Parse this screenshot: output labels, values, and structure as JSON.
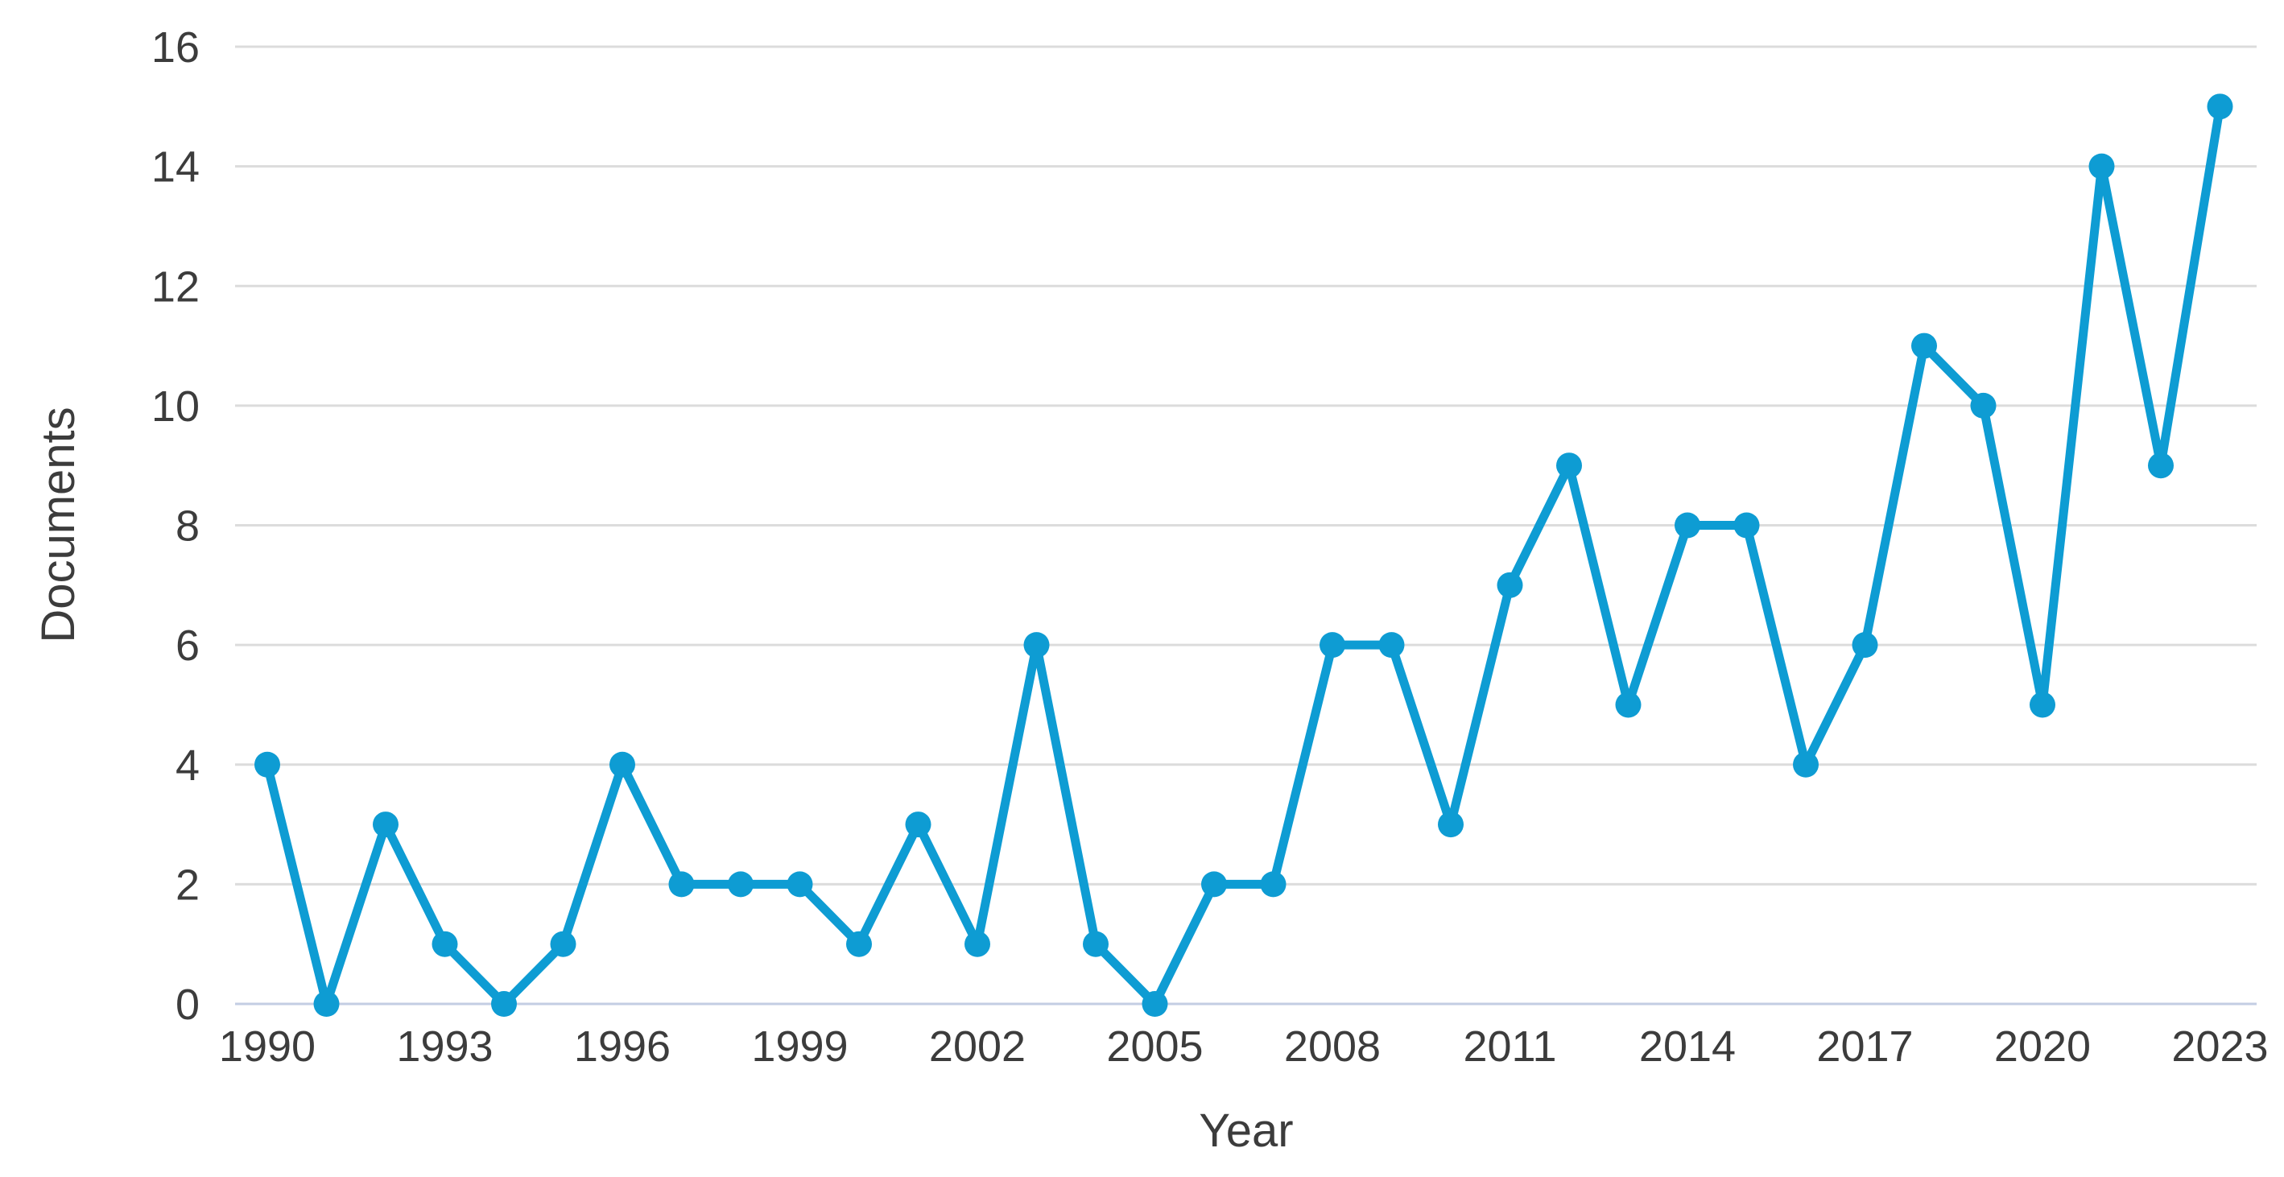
{
  "chart_data": {
    "type": "line",
    "title": "",
    "xlabel": "Year",
    "ylabel": "Documents",
    "x": [
      1990,
      1991,
      1992,
      1993,
      1994,
      1995,
      1996,
      1997,
      1998,
      1999,
      2000,
      2001,
      2002,
      2003,
      2004,
      2005,
      2006,
      2007,
      2008,
      2009,
      2010,
      2011,
      2012,
      2013,
      2014,
      2015,
      2016,
      2017,
      2018,
      2019,
      2020,
      2021,
      2022,
      2023
    ],
    "values": [
      4,
      0,
      3,
      1,
      0,
      1,
      4,
      2,
      2,
      2,
      1,
      3,
      1,
      6,
      1,
      0,
      2,
      2,
      6,
      6,
      3,
      7,
      9,
      5,
      8,
      8,
      4,
      6,
      11,
      10,
      5,
      14,
      9,
      15
    ],
    "xticks": [
      1990,
      1993,
      1996,
      1999,
      2002,
      2005,
      2008,
      2011,
      2014,
      2017,
      2020,
      2023
    ],
    "yticks": [
      0,
      2,
      4,
      6,
      8,
      10,
      12,
      14,
      16
    ],
    "xlim": [
      1990,
      2023
    ],
    "ylim": [
      0,
      16
    ],
    "grid": "horizontal",
    "legend": "none",
    "colors": {
      "line": "#0e9cd3",
      "marker": "#0e9cd3",
      "gridline": "#dcdcdc",
      "zero_baseline": "#c3cde3",
      "text": "#3c3c3c",
      "background": "#ffffff"
    }
  }
}
